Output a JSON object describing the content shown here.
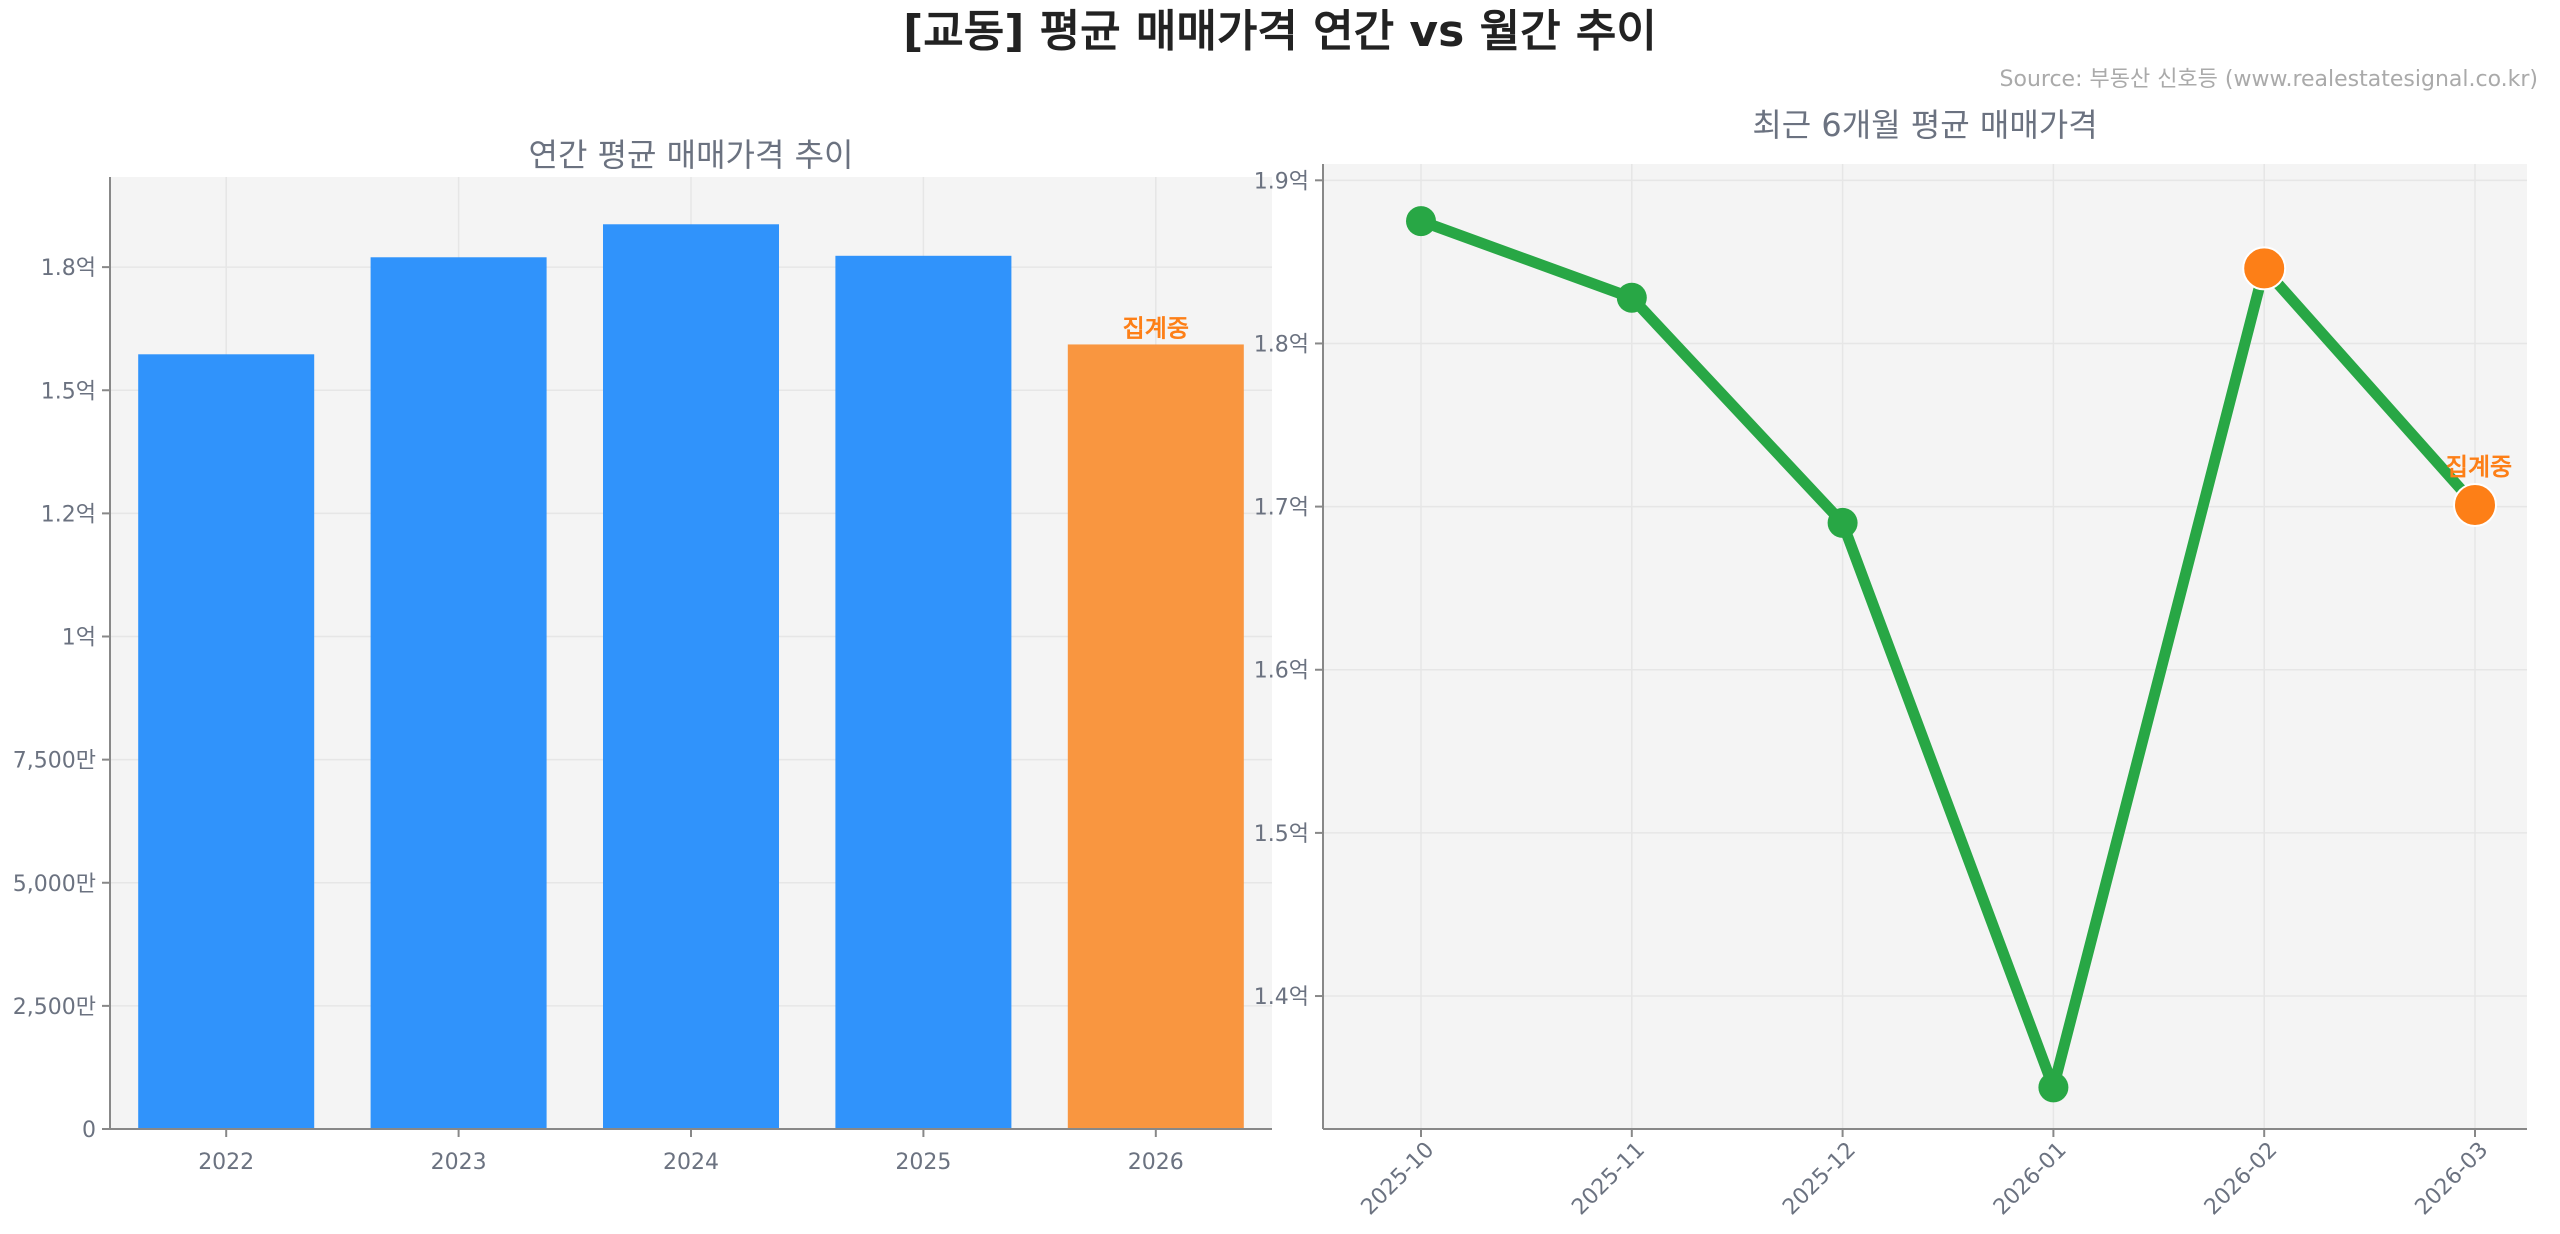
{
  "title": "[교동] 평균 매매가격 연간 vs 월간 추이",
  "source": "Source: 부동산 신호등 (www.realestatesignal.co.kr)",
  "colors": {
    "bar": "#3093fb",
    "bar_partial": "#f99640",
    "line": "#28a745",
    "marker": "#28a745",
    "marker_partial": "#fd7f17",
    "note": "#fd7f17",
    "plot_bg": "#f4f4f4"
  },
  "chart_data": [
    {
      "type": "bar",
      "title": "연간 평균 매매가격 추이",
      "categories": [
        "2022",
        "2023",
        "2024",
        "2025",
        "2026"
      ],
      "values": [
        157300000,
        177000000,
        183700000,
        177300000,
        159300000
      ],
      "partial": [
        false,
        false,
        false,
        false,
        true
      ],
      "annotation": {
        "category": "2026",
        "text": "집계중"
      },
      "ylim": [
        0,
        193300000
      ],
      "yticks": [
        0,
        25000000,
        50000000,
        75000000,
        100000000,
        125000000,
        150000000,
        175000000
      ],
      "ytick_labels": [
        "0",
        "2,500만",
        "5,000만",
        "7,500만",
        "1억",
        "1.2억",
        "1.5억",
        "1.8억"
      ],
      "grid": true
    },
    {
      "type": "line",
      "title": "최근 6개월 평균 매매가격",
      "x": [
        "2025-10",
        "2025-11",
        "2025-12",
        "2026-01",
        "2026-02",
        "2026-03"
      ],
      "values": [
        187500000,
        182800000,
        169000000,
        134400000,
        184600000,
        170100000
      ],
      "highlight": [
        false,
        false,
        false,
        false,
        true,
        true
      ],
      "annotation": {
        "x": "2026-03",
        "text": "집계중"
      },
      "ylim": [
        131850000,
        191000000
      ],
      "yticks": [
        140000000,
        150000000,
        160000000,
        170000000,
        180000000,
        190000000
      ],
      "ytick_labels": [
        "1.4억",
        "1.5억",
        "1.6억",
        "1.7억",
        "1.8억",
        "1.9억"
      ],
      "grid": true
    }
  ]
}
